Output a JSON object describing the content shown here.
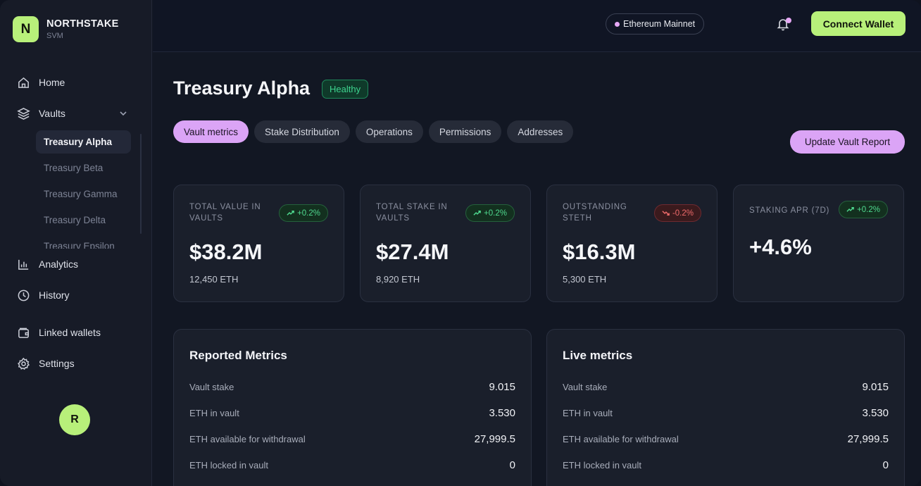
{
  "brand": {
    "logo_letter": "N",
    "name": "NORTHSTAKE",
    "sub": "SVM"
  },
  "nav": {
    "home": "Home",
    "vaults": "Vaults",
    "vault_items": [
      "Treasury Alpha",
      "Treasury Beta",
      "Treasury Gamma",
      "Treasury Delta",
      "Treasury Epsilon"
    ],
    "analytics": "Analytics",
    "history": "History",
    "linked_wallets": "Linked wallets",
    "settings": "Settings"
  },
  "user": {
    "avatar_letter": "R"
  },
  "topbar": {
    "network": "Ethereum Mainnet",
    "connect_label": "Connect Wallet"
  },
  "page": {
    "title": "Treasury Alpha",
    "status": "Healthy",
    "tabs": [
      "Vault metrics",
      "Stake Distribution",
      "Operations",
      "Permissions",
      "Addresses"
    ],
    "update_label": "Update Vault Report"
  },
  "stats": [
    {
      "label": "TOTAL VALUE IN VAULTS",
      "change": "+0.2%",
      "trend": "up",
      "value": "$38.2M",
      "sub": "12,450 ETH"
    },
    {
      "label": "TOTAL STAKE IN VAULTS",
      "change": "+0.2%",
      "trend": "up",
      "value": "$27.4M",
      "sub": "8,920 ETH"
    },
    {
      "label": "OUTSTANDING STETH",
      "change": "-0.2%",
      "trend": "down",
      "value": "$16.3M",
      "sub": "5,300 ETH"
    },
    {
      "label": "STAKING APR (7D)",
      "change": "+0.2%",
      "trend": "up",
      "value": "+4.6%",
      "sub": ""
    }
  ],
  "reported": {
    "title": "Reported Metrics",
    "rows": [
      {
        "label": "Vault stake",
        "value": "9.015"
      },
      {
        "label": "ETH in vault",
        "value": "3.530"
      },
      {
        "label": "ETH available for withdrawal",
        "value": "27,999.5"
      },
      {
        "label": "ETH locked in vault",
        "value": "0"
      }
    ]
  },
  "live": {
    "title": "Live metrics",
    "rows": [
      {
        "label": "Vault stake",
        "value": "9.015"
      },
      {
        "label": "ETH in vault",
        "value": "3.530"
      },
      {
        "label": "ETH available for withdrawal",
        "value": "27,999.5"
      },
      {
        "label": "ETH locked in vault",
        "value": "0"
      }
    ]
  },
  "colors": {
    "accent_green": "#b8f07a",
    "accent_purple": "#dba4f6",
    "up": "#4fd98f",
    "down": "#ef6b6b"
  }
}
